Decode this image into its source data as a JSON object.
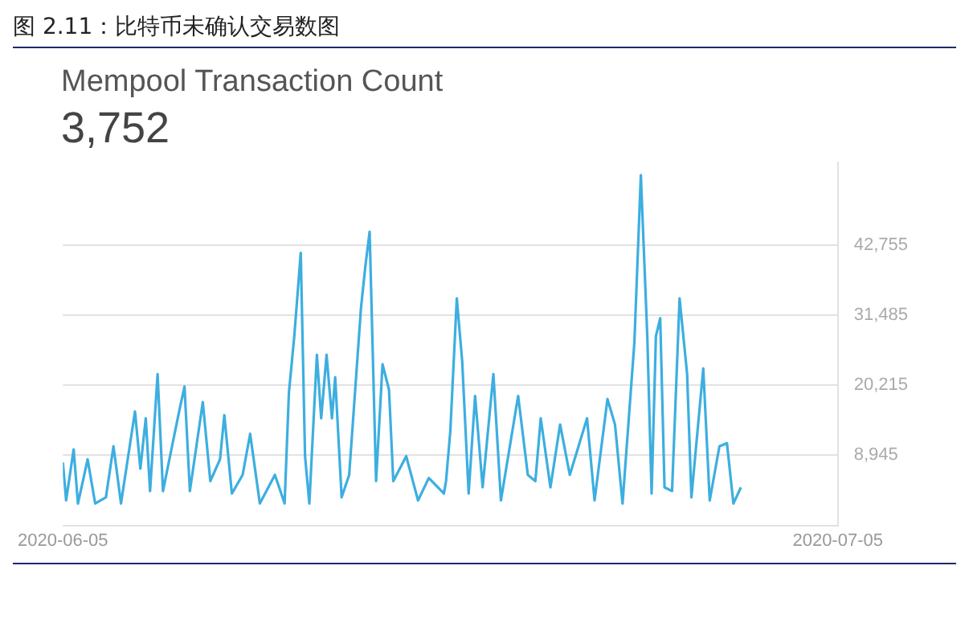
{
  "chart_data": {
    "type": "line",
    "title": "图 2.11：比特币未确认交易数图",
    "subtitle": "Mempool Transaction Count",
    "annotations": [
      "3,752"
    ],
    "x": [
      "2020-06-05T00:00",
      "2020-06-05T03:00",
      "2020-06-05T10:00",
      "2020-06-05T14:00",
      "2020-06-05T23:00",
      "2020-06-06T06:00",
      "2020-06-06T16:00",
      "2020-06-06T23:00",
      "2020-06-07T06:00",
      "2020-06-07T19:00",
      "2020-06-08T00:00",
      "2020-06-08T05:00",
      "2020-06-08T09:00",
      "2020-06-08T16:00",
      "2020-06-08T21:00",
      "2020-06-09T06:00",
      "2020-06-09T12:00",
      "2020-06-09T17:00",
      "2020-06-09T22:00",
      "2020-06-10T10:00",
      "2020-06-10T17:00",
      "2020-06-11T02:00",
      "2020-06-11T06:00",
      "2020-06-11T13:00",
      "2020-06-11T23:00",
      "2020-06-12T06:00",
      "2020-06-12T15:00",
      "2020-06-13T05:00",
      "2020-06-13T14:00",
      "2020-06-13T18:00",
      "2020-06-13T23:00",
      "2020-06-14T05:00",
      "2020-06-14T09:00",
      "2020-06-14T13:00",
      "2020-06-14T20:00",
      "2020-06-15T00:00",
      "2020-06-15T05:00",
      "2020-06-15T10:00",
      "2020-06-15T13:00",
      "2020-06-15T19:00",
      "2020-06-16T02:00",
      "2020-06-16T13:00",
      "2020-06-16T17:00",
      "2020-06-16T21:00",
      "2020-06-17T03:00",
      "2020-06-17T09:00",
      "2020-06-17T15:00",
      "2020-06-17T19:00",
      "2020-06-18T07:00",
      "2020-06-18T18:00",
      "2020-06-19T04:00",
      "2020-06-19T18:00",
      "2020-06-19T20:00",
      "2020-06-20T00:00",
      "2020-06-20T06:00",
      "2020-06-20T11:00",
      "2020-06-20T17:00",
      "2020-06-20T23:00",
      "2020-06-21T06:00",
      "2020-06-21T16:00",
      "2020-06-21T23:00",
      "2020-06-22T15:00",
      "2020-06-23T00:00",
      "2020-06-23T07:00",
      "2020-06-23T12:00",
      "2020-06-23T21:00",
      "2020-06-24T06:00",
      "2020-06-24T15:00",
      "2020-06-25T00:00",
      "2020-06-25T07:00",
      "2020-06-25T14:00",
      "2020-06-26T02:00",
      "2020-06-26T09:00",
      "2020-06-26T16:00",
      "2020-06-27T03:00",
      "2020-06-27T09:00",
      "2020-06-27T15:00",
      "2020-06-27T19:00",
      "2020-06-27T23:00",
      "2020-06-28T03:00",
      "2020-06-28T07:00",
      "2020-06-28T14:00",
      "2020-06-28T21:00",
      "2020-06-29T04:00",
      "2020-06-29T08:00",
      "2020-06-29T19:00",
      "2020-06-30T01:00",
      "2020-06-30T10:00",
      "2020-06-30T17:00",
      "2020-06-30T23:00",
      "2020-07-01T06:00"
    ],
    "series": [
      {
        "color": "#3daee0",
        "values": [
          7800,
          1700,
          9900,
          1200,
          8300,
          1200,
          2200,
          10400,
          1200,
          16000,
          6800,
          14900,
          3200,
          22000,
          3200,
          10900,
          16000,
          20000,
          3200,
          17500,
          4800,
          8300,
          15400,
          2800,
          5800,
          12400,
          1200,
          5800,
          1200,
          19000,
          28100,
          41500,
          8800,
          1200,
          25100,
          14900,
          25100,
          14900,
          21500,
          2200,
          5800,
          32700,
          39300,
          44900,
          4800,
          23600,
          19500,
          4800,
          8800,
          1700,
          5300,
          2800,
          4800,
          12900,
          34200,
          24100,
          2800,
          18500,
          3800,
          22000,
          1700,
          18500,
          5800,
          4800,
          14900,
          3800,
          13900,
          5800,
          10900,
          14900,
          1700,
          18000,
          13900,
          1200,
          27100,
          54000,
          28100,
          2800,
          28100,
          31000,
          3800,
          3200,
          34200,
          22000,
          2200,
          22900,
          1700,
          10400,
          10900,
          1200,
          3800
        ]
      }
    ],
    "xlim": [
      "2020-06-05",
      "2020-07-05"
    ],
    "xticks": [
      {
        "value": "2020-06-05",
        "label": "2020-06-05"
      },
      {
        "value": "2020-07-05",
        "label": "2020-07-05"
      }
    ],
    "ylim": [
      -2325,
      56000
    ],
    "yticks": [
      {
        "value": -2325,
        "label": null
      },
      {
        "value": 8945,
        "label": "8,945"
      },
      {
        "value": 20215,
        "label": "20,215"
      },
      {
        "value": 31485,
        "label": "31,485"
      },
      {
        "value": 42755,
        "label": "42,755"
      }
    ],
    "grid": "y",
    "legend": false,
    "marker": "none",
    "line_style": "solid"
  }
}
